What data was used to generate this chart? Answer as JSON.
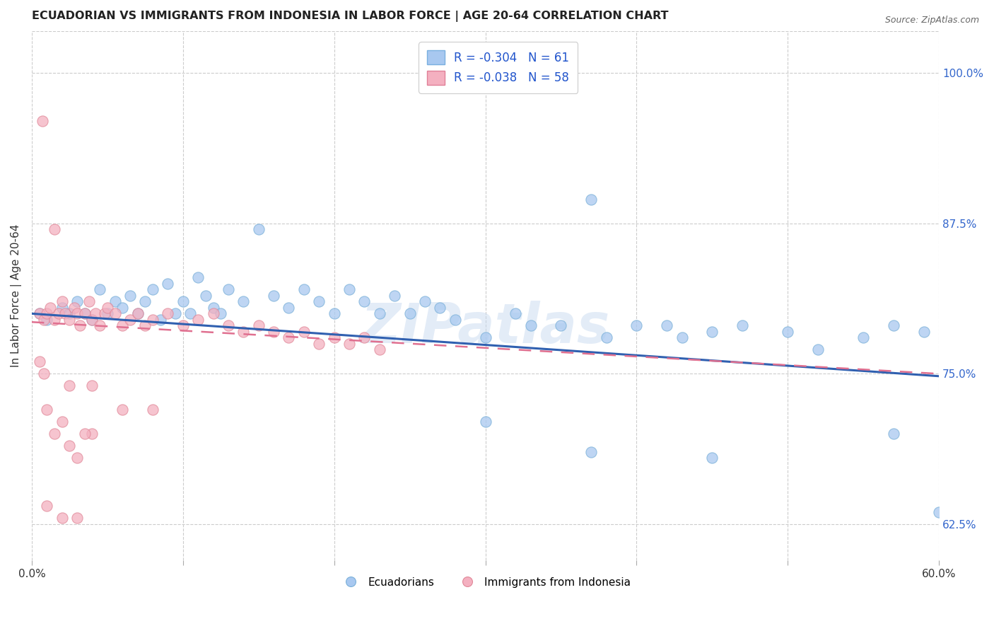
{
  "title": "ECUADORIAN VS IMMIGRANTS FROM INDONESIA IN LABOR FORCE | AGE 20-64 CORRELATION CHART",
  "source": "Source: ZipAtlas.com",
  "ylabel_left": "In Labor Force | Age 20-64",
  "legend_entries": [
    {
      "color": "#a8c8f0",
      "edge_color": "#7ab0e0",
      "R": "-0.304",
      "N": "61"
    },
    {
      "color": "#f4b0c0",
      "edge_color": "#e08098",
      "R": "-0.038",
      "N": "58"
    }
  ],
  "legend_labels": [
    "Ecuadorians",
    "Immigrants from Indonesia"
  ],
  "watermark": "ZIPatlas",
  "scatter_color_blue": "#a8c8f0",
  "scatter_edge_blue": "#7ab0d8",
  "scatter_color_pink": "#f4b0c0",
  "scatter_edge_pink": "#e08898",
  "line_color_blue": "#3060b0",
  "line_color_pink": "#e07090",
  "background_color": "#ffffff",
  "grid_color": "#cccccc",
  "xlim": [
    0.0,
    0.6
  ],
  "ylim": [
    0.595,
    1.035
  ],
  "blue_line_x": [
    0.0,
    0.6
  ],
  "blue_line_y": [
    0.8,
    0.748
  ],
  "pink_line_x": [
    0.0,
    0.6
  ],
  "pink_line_y": [
    0.793,
    0.75
  ],
  "xlabel_ticks": [
    0.0,
    0.1,
    0.2,
    0.3,
    0.4,
    0.5,
    0.6
  ],
  "xlabel_labels": [
    "0.0%",
    "",
    "",
    "",
    "",
    "",
    "60.0%"
  ],
  "ylabel_right_ticks": [
    0.625,
    0.75,
    0.875,
    1.0
  ],
  "ylabel_right_labels": [
    "62.5%",
    "75.0%",
    "87.5%",
    "100.0%"
  ],
  "blue_x": [
    0.005,
    0.01,
    0.02,
    0.025,
    0.03,
    0.035,
    0.04,
    0.045,
    0.05,
    0.055,
    0.06,
    0.065,
    0.07,
    0.075,
    0.08,
    0.085,
    0.09,
    0.095,
    0.1,
    0.105,
    0.11,
    0.115,
    0.12,
    0.125,
    0.13,
    0.14,
    0.15,
    0.16,
    0.17,
    0.18,
    0.19,
    0.2,
    0.21,
    0.22,
    0.23,
    0.24,
    0.25,
    0.26,
    0.27,
    0.28,
    0.3,
    0.32,
    0.33,
    0.35,
    0.37,
    0.38,
    0.4,
    0.42,
    0.43,
    0.45,
    0.47,
    0.5,
    0.52,
    0.55,
    0.57,
    0.59,
    0.6,
    0.3,
    0.37,
    0.45,
    0.57
  ],
  "blue_y": [
    0.8,
    0.795,
    0.805,
    0.8,
    0.81,
    0.8,
    0.795,
    0.82,
    0.8,
    0.81,
    0.805,
    0.815,
    0.8,
    0.81,
    0.82,
    0.795,
    0.825,
    0.8,
    0.81,
    0.8,
    0.83,
    0.815,
    0.805,
    0.8,
    0.82,
    0.81,
    0.87,
    0.815,
    0.805,
    0.82,
    0.81,
    0.8,
    0.82,
    0.81,
    0.8,
    0.815,
    0.8,
    0.81,
    0.805,
    0.795,
    0.78,
    0.8,
    0.79,
    0.79,
    0.895,
    0.78,
    0.79,
    0.79,
    0.78,
    0.785,
    0.79,
    0.785,
    0.77,
    0.78,
    0.79,
    0.785,
    0.635,
    0.71,
    0.685,
    0.68,
    0.7
  ],
  "pink_x": [
    0.005,
    0.008,
    0.01,
    0.012,
    0.015,
    0.018,
    0.02,
    0.022,
    0.025,
    0.028,
    0.03,
    0.032,
    0.035,
    0.038,
    0.04,
    0.042,
    0.045,
    0.048,
    0.05,
    0.055,
    0.06,
    0.065,
    0.07,
    0.075,
    0.08,
    0.09,
    0.1,
    0.11,
    0.12,
    0.13,
    0.14,
    0.15,
    0.16,
    0.17,
    0.18,
    0.19,
    0.2,
    0.21,
    0.22,
    0.23,
    0.007,
    0.015,
    0.025,
    0.04,
    0.06,
    0.08,
    0.01,
    0.02,
    0.03,
    0.04,
    0.005,
    0.008,
    0.01,
    0.015,
    0.02,
    0.025,
    0.03,
    0.035
  ],
  "pink_y": [
    0.8,
    0.795,
    0.8,
    0.805,
    0.795,
    0.8,
    0.81,
    0.8,
    0.795,
    0.805,
    0.8,
    0.79,
    0.8,
    0.81,
    0.795,
    0.8,
    0.79,
    0.8,
    0.805,
    0.8,
    0.79,
    0.795,
    0.8,
    0.79,
    0.795,
    0.8,
    0.79,
    0.795,
    0.8,
    0.79,
    0.785,
    0.79,
    0.785,
    0.78,
    0.785,
    0.775,
    0.78,
    0.775,
    0.78,
    0.77,
    0.96,
    0.87,
    0.74,
    0.74,
    0.72,
    0.72,
    0.64,
    0.63,
    0.63,
    0.7,
    0.76,
    0.75,
    0.72,
    0.7,
    0.71,
    0.69,
    0.68,
    0.7
  ]
}
